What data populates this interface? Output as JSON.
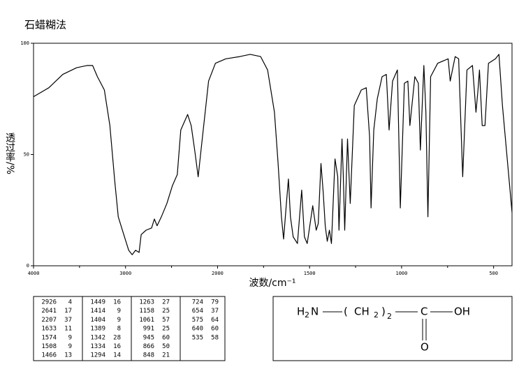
{
  "chart_data": {
    "type": "line",
    "title": "石蜡糊法",
    "xlabel": "波数/cm⁻¹",
    "ylabel": "透过率/%",
    "color": "#000000",
    "xlim": [
      4000,
      400
    ],
    "x_scale_break": 2000,
    "xticks": [
      4000,
      3000,
      2000,
      1500,
      1000,
      500
    ],
    "xminor": [
      3500,
      2500,
      1750,
      1250,
      750
    ],
    "ylim": [
      0,
      100
    ],
    "yticks": [
      0,
      50,
      100
    ],
    "grid": false,
    "x": [
      4000,
      3834,
      3683,
      3532,
      3419,
      3358,
      3306,
      3268,
      3230,
      3170,
      3117,
      3079,
      3019,
      2966,
      2928,
      2891,
      2853,
      2830,
      2777,
      2717,
      2687,
      2657,
      2611,
      2551,
      2491,
      2438,
      2400,
      2325,
      2287,
      2249,
      2211,
      2174,
      2098,
      2023,
      1955,
      1879,
      1823,
      1766,
      1728,
      1691,
      1672,
      1653,
      1641,
      1626,
      1615,
      1604,
      1589,
      1566,
      1543,
      1528,
      1513,
      1483,
      1464,
      1453,
      1438,
      1426,
      1415,
      1404,
      1392,
      1381,
      1362,
      1347,
      1340,
      1324,
      1317,
      1309,
      1294,
      1279,
      1257,
      1219,
      1192,
      1174,
      1166,
      1151,
      1132,
      1106,
      1083,
      1068,
      1049,
      1023,
      1007,
      985,
      966,
      955,
      928,
      909,
      898,
      879,
      868,
      857,
      842,
      804,
      747,
      736,
      709,
      690,
      668,
      645,
      615,
      596,
      585,
      577,
      562,
      547,
      528,
      490,
      471,
      452,
      400
    ],
    "values": [
      76,
      80,
      86,
      89,
      90,
      90,
      85,
      82,
      79,
      63,
      38,
      22,
      14,
      7,
      5,
      7,
      6,
      14,
      16,
      17,
      21,
      18,
      22,
      28,
      36,
      41,
      61,
      68,
      63,
      52,
      40,
      54,
      83,
      91,
      93,
      94,
      95,
      94,
      88,
      69,
      47,
      22,
      12,
      28,
      39,
      22,
      13,
      10,
      34,
      13,
      10,
      27,
      16,
      19,
      46,
      33,
      18,
      11,
      16,
      10,
      48,
      40,
      16,
      57,
      41,
      16,
      57,
      28,
      72,
      79,
      80,
      58,
      26,
      61,
      75,
      85,
      86,
      61,
      83,
      88,
      26,
      82,
      83,
      63,
      85,
      82,
      52,
      90,
      69,
      22,
      85,
      91,
      93,
      83,
      94,
      93,
      40,
      88,
      90,
      69,
      79,
      88,
      63,
      63,
      91,
      93,
      95,
      72,
      24
    ]
  },
  "peak_table": {
    "columns": [
      [
        [
          2926,
          4
        ],
        [
          2641,
          17
        ],
        [
          2207,
          37
        ],
        [
          1633,
          11
        ],
        [
          1574,
          9
        ],
        [
          1508,
          9
        ],
        [
          1466,
          13
        ]
      ],
      [
        [
          1449,
          16
        ],
        [
          1414,
          9
        ],
        [
          1404,
          9
        ],
        [
          1389,
          8
        ],
        [
          1342,
          28
        ],
        [
          1334,
          16
        ],
        [
          1294,
          14
        ]
      ],
      [
        [
          1263,
          27
        ],
        [
          1158,
          25
        ],
        [
          1061,
          57
        ],
        [
          991,
          25
        ],
        [
          945,
          60
        ],
        [
          866,
          50
        ],
        [
          848,
          21
        ]
      ],
      [
        [
          724,
          79
        ],
        [
          654,
          37
        ],
        [
          575,
          64
        ],
        [
          640,
          60
        ],
        [
          535,
          58
        ]
      ]
    ]
  },
  "structure": {
    "amine": "H",
    "amine_sub": "2",
    "nitrogen": "N",
    "open": "(",
    "ch": "CH",
    "ch_sub": "2",
    "close": ")",
    "count": "2",
    "carbon": "C",
    "hydroxyl": "OH",
    "oxygen": "O"
  }
}
